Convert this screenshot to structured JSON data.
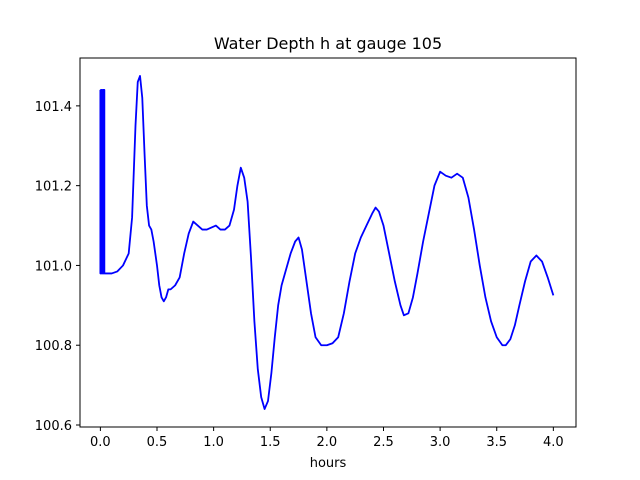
{
  "chart_data": {
    "type": "line",
    "title": "Water Depth h at gauge 105",
    "xlabel": "hours",
    "ylabel": "",
    "xlim": [
      -0.18,
      4.2
    ],
    "ylim": [
      100.595,
      101.52
    ],
    "xticks": [
      0.0,
      0.5,
      1.0,
      1.5,
      2.0,
      2.5,
      3.0,
      3.5,
      4.0
    ],
    "xtick_labels": [
      "0.0",
      "0.5",
      "1.0",
      "1.5",
      "2.0",
      "2.5",
      "3.0",
      "3.5",
      "4.0"
    ],
    "yticks": [
      100.6,
      100.8,
      101.0,
      101.2,
      101.4
    ],
    "ytick_labels": [
      "100.6",
      "100.8",
      "101.0",
      "101.2",
      "101.4"
    ],
    "grid": false,
    "legend": "none",
    "series": [
      {
        "color": "#0000ff",
        "x": [
          0.0,
          0.0,
          0.005,
          0.005,
          0.01,
          0.01,
          0.02,
          0.02,
          0.025,
          0.025,
          0.03,
          0.03,
          0.035,
          0.035,
          0.05,
          0.1,
          0.15,
          0.2,
          0.25,
          0.28,
          0.31,
          0.33,
          0.35,
          0.37,
          0.39,
          0.41,
          0.43,
          0.45,
          0.47,
          0.5,
          0.52,
          0.54,
          0.56,
          0.58,
          0.6,
          0.62,
          0.64,
          0.66,
          0.7,
          0.74,
          0.78,
          0.82,
          0.86,
          0.9,
          0.94,
          0.98,
          1.02,
          1.06,
          1.1,
          1.14,
          1.18,
          1.21,
          1.24,
          1.27,
          1.3,
          1.33,
          1.36,
          1.39,
          1.42,
          1.45,
          1.48,
          1.51,
          1.54,
          1.57,
          1.6,
          1.64,
          1.68,
          1.72,
          1.75,
          1.78,
          1.82,
          1.86,
          1.9,
          1.95,
          2.0,
          2.05,
          2.1,
          2.15,
          2.2,
          2.25,
          2.3,
          2.35,
          2.4,
          2.43,
          2.46,
          2.5,
          2.55,
          2.6,
          2.65,
          2.68,
          2.72,
          2.76,
          2.8,
          2.85,
          2.9,
          2.95,
          3.0,
          3.05,
          3.1,
          3.15,
          3.2,
          3.25,
          3.3,
          3.35,
          3.4,
          3.45,
          3.5,
          3.55,
          3.58,
          3.62,
          3.66,
          3.7,
          3.75,
          3.8,
          3.85,
          3.9,
          3.95,
          4.0
        ],
        "y": [
          101.44,
          100.98,
          100.98,
          101.44,
          101.44,
          100.98,
          100.98,
          101.44,
          101.44,
          100.98,
          100.98,
          101.44,
          101.44,
          100.98,
          100.98,
          100.98,
          100.985,
          101.0,
          101.03,
          101.12,
          101.35,
          101.46,
          101.475,
          101.42,
          101.28,
          101.15,
          101.1,
          101.09,
          101.06,
          101.0,
          100.95,
          100.92,
          100.91,
          100.92,
          100.94,
          100.94,
          100.945,
          100.95,
          100.97,
          101.03,
          101.08,
          101.11,
          101.1,
          101.09,
          101.09,
          101.095,
          101.1,
          101.09,
          101.09,
          101.1,
          101.14,
          101.2,
          101.245,
          101.22,
          101.16,
          101.02,
          100.86,
          100.74,
          100.67,
          100.64,
          100.66,
          100.73,
          100.82,
          100.9,
          100.95,
          100.99,
          101.03,
          101.06,
          101.07,
          101.04,
          100.96,
          100.88,
          100.82,
          100.8,
          100.8,
          100.805,
          100.82,
          100.88,
          100.96,
          101.03,
          101.07,
          101.1,
          101.13,
          101.145,
          101.135,
          101.1,
          101.03,
          100.96,
          100.9,
          100.875,
          100.88,
          100.92,
          100.98,
          101.06,
          101.13,
          101.2,
          101.235,
          101.225,
          101.22,
          101.23,
          101.22,
          101.17,
          101.09,
          101.0,
          100.92,
          100.86,
          100.82,
          100.8,
          100.8,
          100.815,
          100.85,
          100.9,
          100.96,
          101.01,
          101.025,
          101.01,
          100.97,
          100.925
        ]
      }
    ]
  }
}
